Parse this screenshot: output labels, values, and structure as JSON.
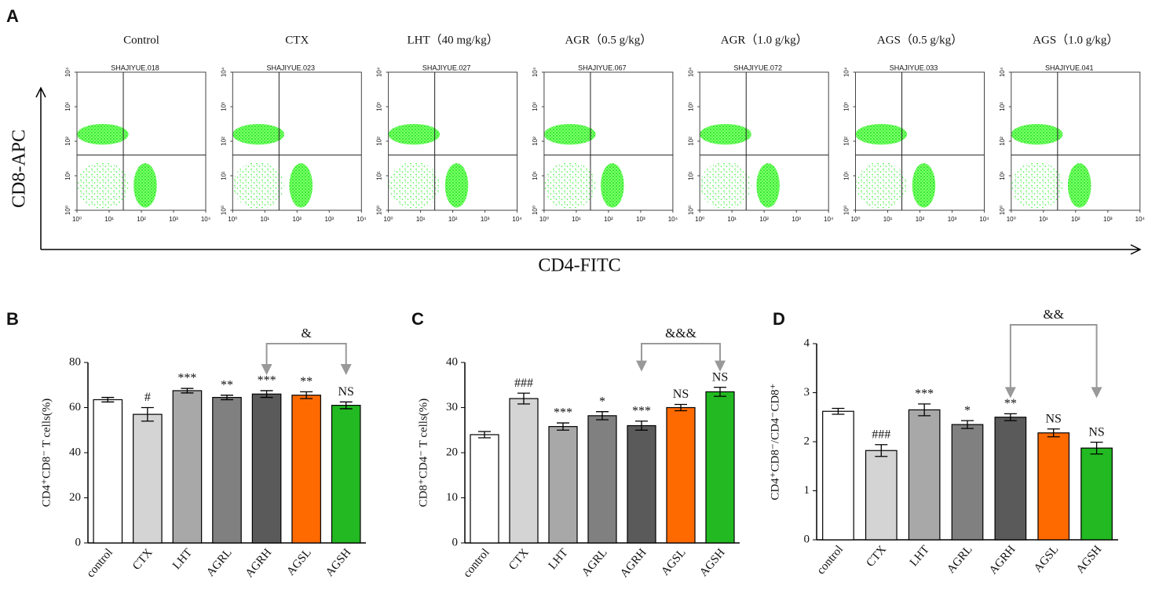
{
  "figure": {
    "panel_labels": [
      "A",
      "B",
      "C",
      "D"
    ],
    "flow": {
      "y_label": "CD8-APC",
      "x_label": "CD4-FITC",
      "ticks": [
        {
          "value": 0,
          "label": "10⁰"
        },
        {
          "value": 1,
          "label": "10¹"
        },
        {
          "value": 2,
          "label": "10²"
        },
        {
          "value": 3,
          "label": "10³"
        },
        {
          "value": 4,
          "label": "10⁴"
        }
      ],
      "plots": [
        {
          "title": "Control",
          "sample": "SHAJIYUE.018"
        },
        {
          "title": "CTX",
          "sample": "SHAJIYUE.023"
        },
        {
          "title": "LHT（40 mg/kg）",
          "sample": "SHAJIYUE.027"
        },
        {
          "title": "AGR（0.5 g/kg）",
          "sample": "SHAJIYUE.067"
        },
        {
          "title": "AGR（1.0 g/kg）",
          "sample": "SHAJIYUE.072"
        },
        {
          "title": "AGS（0.5 g/kg）",
          "sample": "SHAJIYUE.033"
        },
        {
          "title": "AGS（1.0 g/kg）",
          "sample": "SHAJIYUE.041"
        }
      ]
    }
  },
  "chart_data": [
    {
      "type": "bar",
      "y_label": "CD4⁺CD8⁻ T cells(%)",
      "categories": [
        "control",
        "CTX",
        "LHT",
        "AGRL",
        "AGRH",
        "AGSL",
        "AGSH"
      ],
      "values": [
        63.5,
        57,
        67.5,
        64.5,
        66,
        65.5,
        61
      ],
      "errors": [
        1,
        3,
        1,
        1,
        1.5,
        1.5,
        1.5
      ],
      "annotations": [
        null,
        "#",
        "***",
        "**",
        "***",
        "**",
        "NS"
      ],
      "colors": [
        "#ffffff",
        "#d4d4d4",
        "#a8a8a8",
        "#808080",
        "#5a5a5a",
        "#ff6a00",
        "#22b922"
      ],
      "comparison": {
        "label": "&",
        "between": [
          "AGRH",
          "AGSH"
        ]
      },
      "ylim": [
        0,
        80
      ],
      "yticks": [
        0,
        20,
        40,
        60,
        80
      ]
    },
    {
      "type": "bar",
      "y_label": "CD8⁺CD4⁻ T cells(%)",
      "categories": [
        "control",
        "CTX",
        "LHT",
        "AGRL",
        "AGRH",
        "AGSL",
        "AGSH"
      ],
      "values": [
        24,
        32,
        25.8,
        28.2,
        26,
        30,
        33.5
      ],
      "errors": [
        0.7,
        1.2,
        0.8,
        0.9,
        1,
        0.7,
        1
      ],
      "annotations": [
        null,
        "###",
        "***",
        "*",
        "***",
        "NS",
        "NS"
      ],
      "colors": [
        "#ffffff",
        "#d4d4d4",
        "#a8a8a8",
        "#808080",
        "#5a5a5a",
        "#ff6a00",
        "#22b922"
      ],
      "comparison": {
        "label": "&&&",
        "between": [
          "AGRH",
          "AGSH"
        ]
      },
      "ylim": [
        0,
        40
      ],
      "yticks": [
        0,
        10,
        20,
        30,
        40
      ]
    },
    {
      "type": "bar",
      "y_label": "CD4⁺CD8⁻/CD4⁻CD8⁺",
      "categories": [
        "control",
        "CTX",
        "LHT",
        "AGRL",
        "AGRH",
        "AGSL",
        "AGSH"
      ],
      "values": [
        2.62,
        1.82,
        2.65,
        2.35,
        2.5,
        2.18,
        1.87
      ],
      "errors": [
        0.06,
        0.12,
        0.12,
        0.08,
        0.07,
        0.08,
        0.12
      ],
      "annotations": [
        null,
        "###",
        "***",
        "*",
        "**",
        "NS",
        "NS"
      ],
      "colors": [
        "#ffffff",
        "#d4d4d4",
        "#a8a8a8",
        "#808080",
        "#5a5a5a",
        "#ff6a00",
        "#22b922"
      ],
      "comparison": {
        "label": "&&",
        "between": [
          "AGRH",
          "AGSH"
        ]
      },
      "ylim": [
        0,
        4
      ],
      "yticks": [
        0,
        1,
        2,
        3,
        4
      ]
    }
  ]
}
